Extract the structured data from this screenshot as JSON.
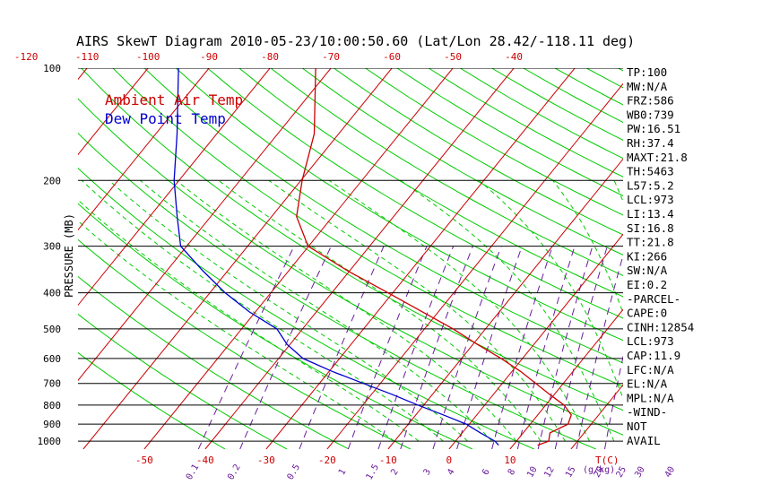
{
  "title": "AIRS SkewT Diagram 2010-05-23/10:00:50.60 (Lat/Lon 28.42/-118.11 deg)",
  "legend": [
    {
      "label": "Ambient Air Temp",
      "color": "#cc0000"
    },
    {
      "label": "Dew Point Temp",
      "color": "#0000cc"
    }
  ],
  "colors": {
    "temp": "#cc0000",
    "dewpoint": "#0000cc",
    "isotherm": "#cc0000",
    "dry_adiabat": "#00cc00",
    "moist_adiabat": "#00cc00",
    "mixing_ratio": "#6a1b9a",
    "isobar": "#000000"
  },
  "stats": [
    "TP:100",
    "MW:N/A",
    "FRZ:586",
    "WB0:739",
    "PW:16.51",
    "RH:37.4",
    "MAXT:21.8",
    "TH:5463",
    "L57:5.2",
    "LCL:973",
    "LI:13.4",
    "SI:16.8",
    "TT:21.8",
    "KI:266",
    "SW:N/A",
    "EI:0.2",
    "-PARCEL-",
    "CAPE:0",
    "CINH:12854",
    "LCL:973",
    "CAP:11.9",
    "LFC:N/A",
    "EL:N/A",
    "MPL:N/A",
    "-WIND-",
    "NOT",
    "AVAIL"
  ],
  "chart_data": {
    "type": "line",
    "title": "AIRS SkewT Diagram 2010-05-23/10:00:50.60 (Lat/Lon 28.42/-118.11 deg)",
    "ylabel": "PRESSURE (MB)",
    "xlabel": "T(C)",
    "y_scale": "log-pressure",
    "ylim": [
      1050,
      100
    ],
    "pressure_ticks": [
      100,
      200,
      300,
      400,
      500,
      600,
      700,
      800,
      900,
      1000
    ],
    "top_temp_ticks": [
      -120,
      -110,
      -100,
      -90,
      -80,
      -70,
      -60,
      -50,
      -40
    ],
    "bottom_temp_ticks": [
      -50,
      -40,
      -30,
      -20,
      -10,
      0,
      10
    ],
    "mixing_ratio_ticks": [
      "0.1",
      "0.2",
      "0.5",
      "1",
      "1.5",
      "2",
      "3",
      "4",
      "6",
      "8",
      "10",
      "12",
      "15",
      "20",
      "25",
      "30",
      "40"
    ],
    "mixing_ratio_unit": "(g/kg)",
    "series": [
      {
        "name": "Ambient Air Temp",
        "points": [
          {
            "p": 1025,
            "t": 14
          },
          {
            "p": 1000,
            "t": 15.3
          },
          {
            "p": 950,
            "t": 14.4
          },
          {
            "p": 900,
            "t": 16.2
          },
          {
            "p": 850,
            "t": 15.5
          },
          {
            "p": 800,
            "t": 13.0
          },
          {
            "p": 750,
            "t": 9.3
          },
          {
            "p": 700,
            "t": 5.5
          },
          {
            "p": 650,
            "t": 1.4
          },
          {
            "p": 600,
            "t": -3.5
          },
          {
            "p": 550,
            "t": -9.3
          },
          {
            "p": 500,
            "t": -15.3
          },
          {
            "p": 450,
            "t": -22.6
          },
          {
            "p": 400,
            "t": -30.8
          },
          {
            "p": 350,
            "t": -40.2
          },
          {
            "p": 300,
            "t": -50.1
          },
          {
            "p": 250,
            "t": -55.9
          },
          {
            "p": 200,
            "t": -59.8
          },
          {
            "p": 150,
            "t": -64.0
          },
          {
            "p": 100,
            "t": -72.5
          }
        ]
      },
      {
        "name": "Dew Point Temp",
        "points": [
          {
            "p": 1025,
            "t": 7.6
          },
          {
            "p": 1000,
            "t": 6.5
          },
          {
            "p": 950,
            "t": 3.0
          },
          {
            "p": 900,
            "t": -0.5
          },
          {
            "p": 850,
            "t": -5.5
          },
          {
            "p": 800,
            "t": -11.0
          },
          {
            "p": 750,
            "t": -16.5
          },
          {
            "p": 700,
            "t": -22.8
          },
          {
            "p": 650,
            "t": -29.5
          },
          {
            "p": 600,
            "t": -36.0
          },
          {
            "p": 550,
            "t": -40.5
          },
          {
            "p": 500,
            "t": -44.2
          },
          {
            "p": 450,
            "t": -51.0
          },
          {
            "p": 400,
            "t": -57.5
          },
          {
            "p": 350,
            "t": -64.0
          },
          {
            "p": 300,
            "t": -71.0
          },
          {
            "p": 250,
            "t": -75.5
          },
          {
            "p": 200,
            "t": -80.8
          },
          {
            "p": 150,
            "t": -86.5
          },
          {
            "p": 100,
            "t": -95.0
          }
        ]
      }
    ]
  }
}
